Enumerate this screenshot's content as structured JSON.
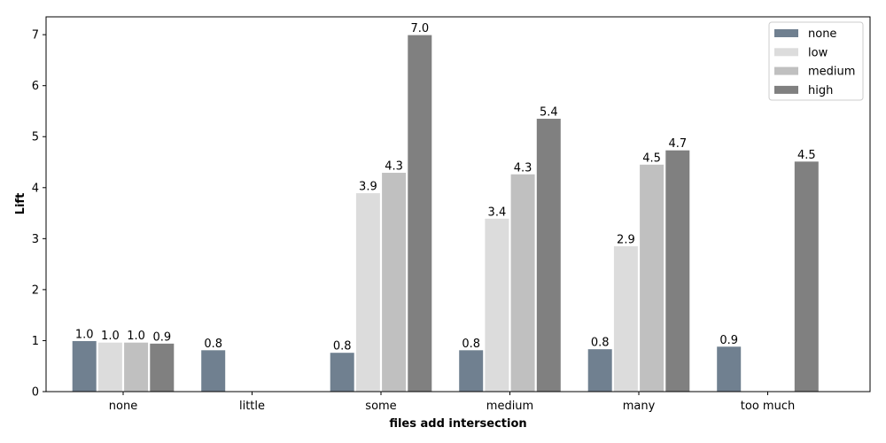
{
  "chart_data": {
    "type": "bar",
    "title": "",
    "xlabel": "files add intersection",
    "ylabel": "Lift",
    "categories": [
      "none",
      "little",
      "some",
      "medium",
      "many",
      "too much"
    ],
    "ylim": [
      0,
      7.35
    ],
    "yticks": [
      0,
      1,
      2,
      3,
      4,
      5,
      6,
      7
    ],
    "grid": false,
    "legend_position": "top-right",
    "series": [
      {
        "name": "none",
        "color": "#708090",
        "values": [
          1.0,
          0.82,
          0.77,
          0.82,
          0.84,
          0.89
        ]
      },
      {
        "name": "low",
        "color": "#dcdcdc",
        "values": [
          0.97,
          null,
          3.9,
          3.4,
          2.86,
          null
        ]
      },
      {
        "name": "medium",
        "color": "#c0c0c0",
        "values": [
          0.97,
          null,
          4.3,
          4.27,
          4.46,
          null
        ]
      },
      {
        "name": "high",
        "color": "#808080",
        "values": [
          0.95,
          null,
          7.0,
          5.36,
          4.74,
          4.52
        ]
      }
    ]
  }
}
